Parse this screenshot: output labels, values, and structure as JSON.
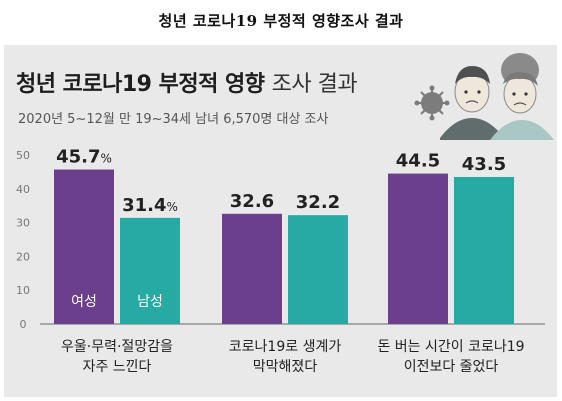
{
  "page": {
    "title": "청년  코로나19  부정적  영향조사  결과"
  },
  "card": {
    "title_bold": "청년 코로나19 부정적 영향",
    "title_light": "조사 결과",
    "subtitle": "2020년 5~12월 만 19~34세 남녀 6,570명 대상 조사"
  },
  "colors": {
    "female": "#6b3f8c",
    "male": "#27aaa3",
    "background": "#e9e9e9"
  },
  "chart_data": {
    "type": "bar",
    "categories": [
      "우울·무력·절망감을\n자주 느낀다",
      "코로나19로 생계가\n막막해졌다",
      "돈 버는 시간이 코로나19\n이전보다 줄었다"
    ],
    "series": [
      {
        "name": "여성",
        "values": [
          45.7,
          32.6,
          44.5
        ],
        "labels": [
          "45.7%",
          "32.6",
          "44.5"
        ]
      },
      {
        "name": "남성",
        "values": [
          31.4,
          32.2,
          43.5
        ],
        "labels": [
          "31.4%",
          "32.2",
          "43.5"
        ]
      }
    ],
    "yticks": [
      0,
      10,
      20,
      30,
      40,
      50
    ],
    "ylim": [
      0,
      50
    ],
    "grid": false,
    "legend": "inside-first-bars"
  }
}
